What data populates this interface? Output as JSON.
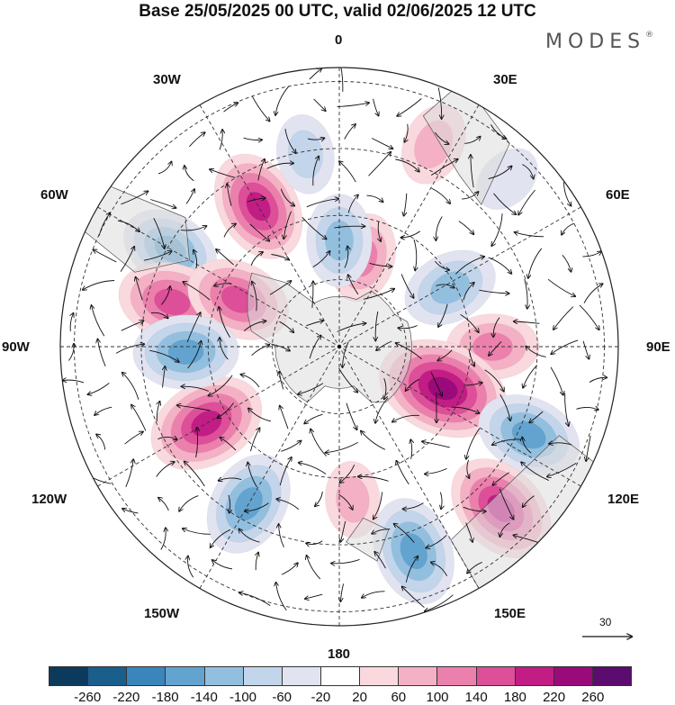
{
  "title": "Base 25/05/2025 00 UTC, valid 02/06/2025 12 UTC",
  "brand": {
    "name": "MODES",
    "mark": "®"
  },
  "longitude_labels": {
    "lon_0": "0",
    "lon_30e": "30E",
    "lon_60e": "60E",
    "lon_90e": "90E",
    "lon_120e": "120E",
    "lon_150e": "150E",
    "lon_180": "180",
    "lon_150w": "150W",
    "lon_120w": "120W",
    "lon_90w": "90W",
    "lon_60w": "60W",
    "lon_30w": "30W"
  },
  "vector_scale": {
    "value": "30"
  },
  "colorbar": {
    "colors": [
      "#0c3a5c",
      "#1a5f8c",
      "#3a86bc",
      "#63a3cf",
      "#93bfdf",
      "#c2d5ea",
      "#e2e3f1",
      "#ffffff",
      "#f9d8de",
      "#f4b0c4",
      "#ec80ad",
      "#dd4f98",
      "#c21c85",
      "#9a0a7a",
      "#5c0c6e"
    ],
    "ticks": [
      "-260",
      "-220",
      "-180",
      "-140",
      "-100",
      "-60",
      "-20",
      "20",
      "60",
      "100",
      "140",
      "180",
      "220",
      "260"
    ]
  },
  "map": {
    "projection": "south polar stereographic",
    "anomalies": [
      {
        "lon": 330,
        "r": 0.58,
        "value": 180
      },
      {
        "lon": 350,
        "r": 0.7,
        "value": -80
      },
      {
        "lon": 25,
        "r": 0.8,
        "value": 90
      },
      {
        "lon": 300,
        "r": 0.7,
        "value": -140
      },
      {
        "lon": 285,
        "r": 0.62,
        "value": 170
      },
      {
        "lon": 295,
        "r": 0.4,
        "value": 160
      },
      {
        "lon": 15,
        "r": 0.33,
        "value": 110
      },
      {
        "lon": 0,
        "r": 0.38,
        "value": -120
      },
      {
        "lon": 62,
        "r": 0.45,
        "value": -130
      },
      {
        "lon": 90,
        "r": 0.55,
        "value": 120
      },
      {
        "lon": 112,
        "r": 0.4,
        "value": 240
      },
      {
        "lon": 115,
        "r": 0.75,
        "value": -160
      },
      {
        "lon": 135,
        "r": 0.82,
        "value": 190
      },
      {
        "lon": 160,
        "r": 0.78,
        "value": -170
      },
      {
        "lon": 175,
        "r": 0.55,
        "value": 70
      },
      {
        "lon": 210,
        "r": 0.65,
        "value": -160
      },
      {
        "lon": 240,
        "r": 0.55,
        "value": 200
      },
      {
        "lon": 268,
        "r": 0.55,
        "value": -160
      },
      {
        "lon": 45,
        "r": 0.85,
        "value": -50
      }
    ]
  }
}
